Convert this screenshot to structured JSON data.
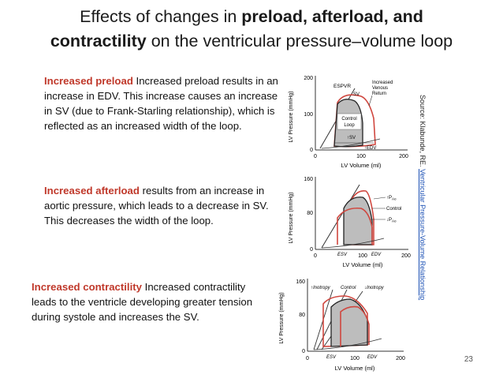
{
  "title": {
    "line1_pre": "Effects of changes in ",
    "line1_bold": "preload, afterload, and",
    "line2_bold": "contractility",
    "line2_post": " on the ventricular pressure–volume loop"
  },
  "sections": {
    "preload": {
      "heading": "Increased preload",
      "text": " Increased preload results in an increase in EDV. This increase causes an increase in SV (due to Frank-Starling relationship), which is reflected as an increased width of the loop."
    },
    "afterload": {
      "heading": "Increased afterload",
      "text": " results from an increase in aortic pressure, which leads to a decrease in SV. This decreases the width of the loop."
    },
    "contractility": {
      "heading": "Increased contractility",
      "text": " Increased contractility leads to the ventricle developing greater tension during systole and increases the SV."
    }
  },
  "plot1": {
    "ylabel": "LV Pressure (mmHg)",
    "xlabel": "LV Volume (ml)",
    "yticks": [
      "200",
      "100",
      "0"
    ],
    "xticks": [
      "0",
      "100",
      "200"
    ],
    "label_espvr": "ESPVR",
    "label_sv_top": "SV",
    "label_control_1": "Control",
    "label_control_2": "Loop",
    "label_increased_1": "Increased",
    "label_increased_2": "Venous",
    "label_increased_3": "Return",
    "label_sv_bottom": "↑SV",
    "label_edv": "↑EDV"
  },
  "plot2": {
    "ylabel": "LV Pressure (mmHg)",
    "xlabel": "LV Volume (ml)",
    "yticks": [
      "160",
      "80",
      "0"
    ],
    "xticks": [
      "0",
      "100",
      "200"
    ],
    "label_esv": "ESV",
    "label_edv": "EDV",
    "label_up": "↑P",
    "label_control": "Control",
    "label_down": "↓P",
    "label_sub": "Ao"
  },
  "plot3": {
    "ylabel": "LV Pressure (mmHg)",
    "xlabel": "LV Volume (ml)",
    "yticks": [
      "160",
      "80",
      "0"
    ],
    "xticks": [
      "0",
      "100",
      "200"
    ],
    "label_esv": "ESV",
    "label_edv": "EDV",
    "label_up": "↑Inotropy",
    "label_control": "Control",
    "label_down": "↓Inotropy"
  },
  "source": {
    "prefix": "Source: Klabunde, RE. ",
    "link": "Ventricular Pressure-Volume Relationship"
  },
  "page_number": "23",
  "colors": {
    "highlight": "#c0392b",
    "loop_red": "#d0473f",
    "loop_fill": "#bdbdbd",
    "link": "#1a4fb4"
  }
}
